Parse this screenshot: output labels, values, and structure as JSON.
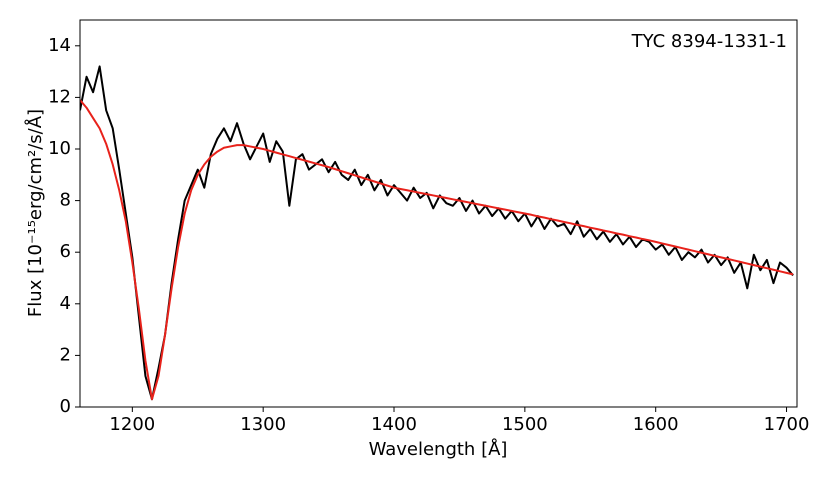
{
  "chart_data": {
    "type": "line",
    "annotation": "TYC 8394-1331-1",
    "xlabel": "Wavelength [Å]",
    "ylabel": "Flux [10⁻¹⁵erg/cm²/s/Å]",
    "x": [
      1160,
      1165,
      1170,
      1175,
      1180,
      1185,
      1190,
      1195,
      1200,
      1205,
      1210,
      1215,
      1220,
      1225,
      1230,
      1235,
      1240,
      1245,
      1250,
      1255,
      1260,
      1265,
      1270,
      1275,
      1280,
      1285,
      1290,
      1295,
      1300,
      1305,
      1310,
      1315,
      1320,
      1325,
      1330,
      1335,
      1340,
      1345,
      1350,
      1355,
      1360,
      1365,
      1370,
      1375,
      1380,
      1385,
      1390,
      1395,
      1400,
      1405,
      1410,
      1415,
      1420,
      1425,
      1430,
      1435,
      1440,
      1445,
      1450,
      1455,
      1460,
      1465,
      1470,
      1475,
      1480,
      1485,
      1490,
      1495,
      1500,
      1505,
      1510,
      1515,
      1520,
      1525,
      1530,
      1535,
      1540,
      1545,
      1550,
      1555,
      1560,
      1565,
      1570,
      1575,
      1580,
      1585,
      1590,
      1595,
      1600,
      1605,
      1610,
      1615,
      1620,
      1625,
      1630,
      1635,
      1640,
      1645,
      1650,
      1655,
      1660,
      1665,
      1670,
      1675,
      1680,
      1685,
      1690,
      1695,
      1700,
      1705
    ],
    "series": [
      {
        "color": "#000000",
        "values": [
          11.5,
          12.8,
          12.2,
          13.2,
          11.5,
          10.8,
          9.2,
          7.5,
          5.8,
          3.5,
          1.2,
          0.3,
          1.5,
          2.8,
          4.8,
          6.5,
          8.0,
          8.6,
          9.2,
          8.5,
          9.8,
          10.4,
          10.8,
          10.3,
          11.0,
          10.2,
          9.6,
          10.1,
          10.6,
          9.5,
          10.3,
          9.9,
          7.8,
          9.6,
          9.8,
          9.2,
          9.4,
          9.6,
          9.1,
          9.5,
          9.0,
          8.8,
          9.2,
          8.6,
          9.0,
          8.4,
          8.8,
          8.2,
          8.6,
          8.3,
          8.0,
          8.5,
          8.1,
          8.3,
          7.7,
          8.2,
          7.9,
          7.8,
          8.1,
          7.6,
          8.0,
          7.5,
          7.8,
          7.4,
          7.7,
          7.3,
          7.6,
          7.2,
          7.5,
          7.0,
          7.4,
          6.9,
          7.3,
          7.0,
          7.1,
          6.7,
          7.2,
          6.6,
          6.9,
          6.5,
          6.8,
          6.4,
          6.7,
          6.3,
          6.6,
          6.2,
          6.5,
          6.4,
          6.1,
          6.3,
          5.9,
          6.2,
          5.7,
          6.0,
          5.8,
          6.1,
          5.6,
          5.9,
          5.5,
          5.8,
          5.2,
          5.6,
          4.6,
          5.9,
          5.3,
          5.7,
          4.8,
          5.6,
          5.4,
          5.1
        ]
      },
      {
        "color": "#e8221b",
        "values": [
          11.9,
          11.6,
          11.2,
          10.8,
          10.2,
          9.4,
          8.4,
          7.2,
          5.6,
          3.8,
          1.8,
          0.3,
          1.2,
          2.8,
          4.6,
          6.2,
          7.5,
          8.4,
          9.0,
          9.4,
          9.7,
          9.9,
          10.05,
          10.1,
          10.15,
          10.15,
          10.1,
          10.05,
          10.0,
          9.93,
          9.86,
          9.79,
          9.72,
          9.65,
          9.58,
          9.51,
          9.44,
          9.37,
          9.3,
          9.22,
          9.14,
          9.06,
          8.98,
          8.9,
          8.82,
          8.74,
          8.66,
          8.58,
          8.5,
          8.45,
          8.4,
          8.35,
          8.3,
          8.25,
          8.2,
          8.15,
          8.1,
          8.05,
          8.0,
          7.95,
          7.9,
          7.85,
          7.8,
          7.75,
          7.7,
          7.65,
          7.6,
          7.55,
          7.5,
          7.45,
          7.39,
          7.34,
          7.28,
          7.23,
          7.17,
          7.12,
          7.06,
          7.01,
          6.95,
          6.9,
          6.84,
          6.79,
          6.73,
          6.68,
          6.62,
          6.57,
          6.51,
          6.46,
          6.4,
          6.34,
          6.28,
          6.22,
          6.16,
          6.1,
          6.04,
          5.98,
          5.92,
          5.86,
          5.8,
          5.74,
          5.68,
          5.62,
          5.56,
          5.5,
          5.44,
          5.38,
          5.32,
          5.26,
          5.2,
          5.14
        ]
      }
    ],
    "xlim": [
      1160,
      1708
    ],
    "ylim": [
      0,
      15
    ],
    "xticks": [
      1200,
      1300,
      1400,
      1500,
      1600,
      1700
    ],
    "yticks": [
      0,
      2,
      4,
      6,
      8,
      10,
      12,
      14
    ],
    "grid": false
  }
}
